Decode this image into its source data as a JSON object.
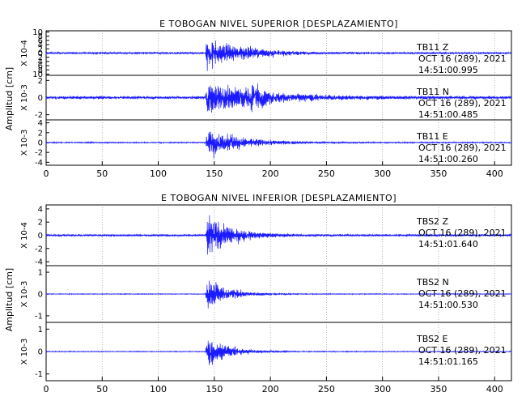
{
  "chart_data": [
    {
      "type": "line",
      "title": "E TOBOGAN NIVEL SUPERIOR [DESPLAZAMIENTO]",
      "ylabel": "Amplitud [cm]",
      "xlim": [
        0,
        415
      ],
      "xticks": [
        "0",
        "50",
        "100",
        "150",
        "200",
        "250",
        "300",
        "350",
        "400"
      ],
      "grid": true,
      "traces": [
        {
          "station": "TB11   Z",
          "date": "OCT 16 (289), 2021",
          "time": "14:51:00.995",
          "scale": "X 10-4",
          "ylim": [
            -12,
            12
          ],
          "yticks": [
            "10",
            "8",
            "6",
            "4",
            "2",
            "0",
            "2",
            "4",
            "6",
            "8",
            "10"
          ],
          "event_onset_s": 142,
          "peak_amplitude": 11,
          "noise_level": 0.6,
          "decay_s": 25,
          "color": "#1a1aff"
        },
        {
          "station": "TB11   N",
          "date": "OCT 16 (289), 2021",
          "time": "14:51:00.485",
          "scale": "X 10-3",
          "ylim": [
            -2.6,
            2.6
          ],
          "yticks": [
            "2",
            "0",
            "-2"
          ],
          "event_onset_s": 142,
          "peak_amplitude": 2.3,
          "noise_level": 0.2,
          "decay_s": 45,
          "color": "#1a1aff"
        },
        {
          "station": "TB11   E",
          "date": "OCT 16 (289), 2021",
          "time": "14:51:00.260",
          "scale": "X 10-3",
          "ylim": [
            -5,
            5
          ],
          "yticks": [
            "4",
            "2",
            "0",
            "-2",
            "-4"
          ],
          "event_onset_s": 142,
          "peak_amplitude": 3.9,
          "noise_level": 0.15,
          "decay_s": 30,
          "color": "#1a1aff"
        }
      ]
    },
    {
      "type": "line",
      "title": "E TOBOGAN NIVEL INFERIOR [DESPLAZAMIENTO]",
      "ylabel": "Amplitud [cm]",
      "xlim": [
        0,
        415
      ],
      "xticks": [
        "0",
        "50",
        "100",
        "150",
        "200",
        "250",
        "300",
        "350",
        "400"
      ],
      "grid": true,
      "traces": [
        {
          "station": "TBS2   Z",
          "date": "OCT 16 (289), 2021",
          "time": "14:51:01.640",
          "scale": "X 10-4",
          "ylim": [
            -5,
            5
          ],
          "yticks": [
            "4",
            "2",
            "0",
            "-2",
            "-4"
          ],
          "event_onset_s": 142,
          "peak_amplitude": 4.6,
          "noise_level": 0.2,
          "decay_s": 20,
          "color": "#1a1aff"
        },
        {
          "station": "TBS2   N",
          "date": "OCT 16 (289), 2021",
          "time": "14:51:00.530",
          "scale": "X 10-3",
          "ylim": [
            -1.8,
            1.8
          ],
          "yticks": [
            "1",
            "0",
            "-1"
          ],
          "event_onset_s": 142,
          "peak_amplitude": 1.3,
          "noise_level": 0.03,
          "decay_s": 18,
          "color": "#1a1aff"
        },
        {
          "station": "TBS2   E",
          "date": "OCT 16 (289), 2021",
          "time": "14:51:01.165",
          "scale": "X 10-3",
          "ylim": [
            -1.8,
            1.8
          ],
          "yticks": [
            "1",
            "0",
            "-1"
          ],
          "event_onset_s": 142,
          "peak_amplitude": 1.3,
          "noise_level": 0.03,
          "decay_s": 18,
          "color": "#1a1aff"
        }
      ]
    }
  ]
}
